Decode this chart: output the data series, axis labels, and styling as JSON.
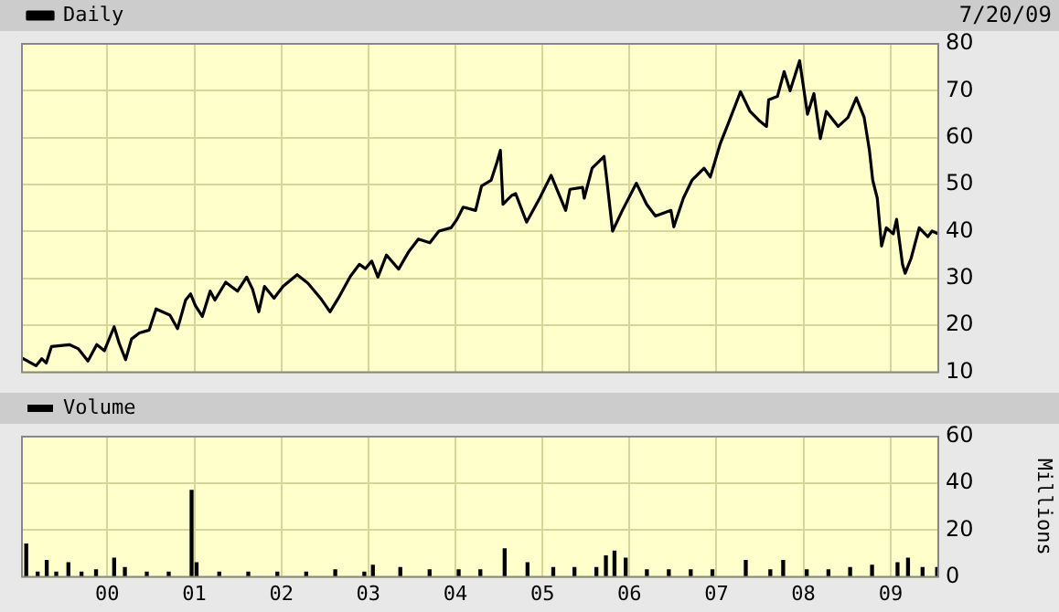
{
  "chart_data": [
    {
      "type": "line",
      "title": null,
      "annotations": [
        "7/20/09"
      ],
      "legend": "top left",
      "grid": true,
      "marker": "none",
      "line_style": "solid",
      "tick_labels": "y",
      "xlim": [
        "1999-01-08",
        "2009-07-20"
      ],
      "xticks": [
        {
          "value": "2000-01-01",
          "label": null
        },
        {
          "value": "2001-01-01",
          "label": null
        },
        {
          "value": "2002-01-01",
          "label": null
        },
        {
          "value": "2003-01-01",
          "label": null
        },
        {
          "value": "2004-01-01",
          "label": null
        },
        {
          "value": "2005-01-01",
          "label": null
        },
        {
          "value": "2006-01-01",
          "label": null
        },
        {
          "value": "2007-01-01",
          "label": null
        },
        {
          "value": "2008-01-01",
          "label": null
        },
        {
          "value": "2009-01-01",
          "label": null
        }
      ],
      "ylim": [
        10,
        80
      ],
      "yticks": [
        10,
        20,
        30,
        40,
        50,
        60,
        70,
        80
      ],
      "series": [
        {
          "name": "Daily",
          "color": "#000000",
          "x": [
            "1999-01-10",
            "1999-03-08",
            "1999-04-01",
            "1999-04-20",
            "1999-05-12",
            "1999-07-26",
            "1999-09-02",
            "1999-10-12",
            "1999-11-18",
            "1999-12-20",
            "2000-01-30",
            "2000-02-20",
            "2000-03-18",
            "2000-04-12",
            "2000-05-15",
            "2000-06-25",
            "2000-07-24",
            "2000-09-20",
            "2000-10-22",
            "2000-11-25",
            "2000-12-16",
            "2001-01-05",
            "2001-02-03",
            "2001-03-08",
            "2001-03-28",
            "2001-05-12",
            "2001-07-01",
            "2001-08-08",
            "2001-09-02",
            "2001-09-28",
            "2001-10-22",
            "2001-12-01",
            "2002-01-08",
            "2002-03-08",
            "2002-04-22",
            "2002-06-14",
            "2002-07-24",
            "2002-08-28",
            "2002-10-18",
            "2002-11-24",
            "2002-12-20",
            "2003-01-15",
            "2003-02-10",
            "2003-03-18",
            "2003-05-08",
            "2003-06-18",
            "2003-07-30",
            "2003-09-16",
            "2003-10-24",
            "2003-12-14",
            "2004-01-08",
            "2004-02-03",
            "2004-03-26",
            "2004-04-20",
            "2004-05-30",
            "2004-06-24",
            "2004-07-08",
            "2004-07-19",
            "2004-08-25",
            "2004-09-10",
            "2004-10-26",
            "2004-12-20",
            "2005-02-06",
            "2005-04-08",
            "2005-04-26",
            "2005-06-18",
            "2005-06-25",
            "2005-07-28",
            "2005-09-16",
            "2005-09-28",
            "2005-10-22",
            "2005-12-02",
            "2006-01-30",
            "2006-03-14",
            "2006-04-20",
            "2006-06-24",
            "2006-07-06",
            "2006-08-15",
            "2006-09-20",
            "2006-11-10",
            "2006-12-06",
            "2007-01-16",
            "2007-02-20",
            "2007-04-12",
            "2007-05-22",
            "2007-06-28",
            "2007-07-30",
            "2007-08-08",
            "2007-09-14",
            "2007-10-12",
            "2007-11-06",
            "2007-12-16",
            "2008-01-18",
            "2008-02-14",
            "2008-03-12",
            "2008-04-06",
            "2008-05-26",
            "2008-07-06",
            "2008-08-10",
            "2008-09-12",
            "2008-10-04",
            "2008-10-18",
            "2008-11-06",
            "2008-11-24",
            "2008-12-14",
            "2009-01-12",
            "2009-01-26",
            "2009-02-20",
            "2009-03-03",
            "2009-03-28",
            "2009-05-01",
            "2009-06-06",
            "2009-06-24",
            "2009-07-20"
          ],
          "values": [
            13.0,
            11.4,
            12.9,
            12.0,
            15.5,
            15.9,
            15.0,
            12.4,
            15.9,
            14.6,
            19.7,
            16.2,
            12.7,
            17.1,
            18.4,
            19.0,
            23.5,
            22.2,
            19.3,
            25.4,
            26.7,
            24.2,
            21.9,
            27.3,
            25.4,
            29.2,
            27.3,
            30.3,
            27.7,
            22.9,
            28.3,
            25.8,
            28.3,
            30.8,
            29.0,
            25.8,
            22.9,
            25.8,
            30.5,
            33.0,
            32.1,
            33.7,
            30.3,
            35.0,
            32.0,
            35.6,
            38.4,
            37.6,
            40.1,
            40.8,
            42.6,
            45.2,
            44.5,
            49.7,
            50.9,
            54.8,
            57.3,
            45.8,
            47.7,
            48.1,
            42.0,
            47.1,
            52.0,
            44.5,
            49.0,
            49.4,
            47.1,
            53.5,
            56.0,
            50.9,
            40.1,
            44.5,
            50.3,
            45.8,
            43.3,
            44.5,
            41.0,
            47.1,
            50.9,
            53.5,
            51.6,
            58.6,
            63.1,
            69.8,
            65.6,
            63.7,
            62.4,
            68.1,
            68.8,
            74.1,
            70.0,
            76.4,
            65.0,
            69.4,
            59.8,
            65.6,
            62.4,
            64.3,
            68.5,
            64.3,
            57.3,
            50.9,
            47.1,
            36.9,
            40.8,
            39.5,
            42.6,
            33.0,
            31.1,
            34.3,
            40.8,
            38.9,
            40.1,
            39.5
          ]
        }
      ]
    },
    {
      "type": "bar",
      "ylabel": "Millions",
      "legend": "top left",
      "grid": true,
      "xlim": [
        "1999-01-08",
        "2009-07-20"
      ],
      "xticks": [
        {
          "value": "2000-01-01",
          "label": "00"
        },
        {
          "value": "2001-01-01",
          "label": "01"
        },
        {
          "value": "2002-01-01",
          "label": "02"
        },
        {
          "value": "2003-01-01",
          "label": "03"
        },
        {
          "value": "2004-01-01",
          "label": "04"
        },
        {
          "value": "2005-01-01",
          "label": "05"
        },
        {
          "value": "2006-01-01",
          "label": "06"
        },
        {
          "value": "2007-01-01",
          "label": "07"
        },
        {
          "value": "2008-01-01",
          "label": "08"
        },
        {
          "value": "2009-01-01",
          "label": "09"
        }
      ],
      "ylim": [
        0,
        60
      ],
      "yticks": [
        0,
        20,
        40,
        60
      ],
      "series": [
        {
          "name": "Volume",
          "color": "#000000",
          "x": [
            "1999-01-26",
            "1999-03-15",
            "1999-04-22",
            "1999-06-01",
            "1999-07-22",
            "1999-09-15",
            "1999-11-15",
            "2000-01-30",
            "2000-03-15",
            "2000-06-15",
            "2000-09-15",
            "2000-12-20",
            "2001-01-10",
            "2001-04-15",
            "2001-08-15",
            "2001-12-15",
            "2002-04-15",
            "2002-08-15",
            "2002-12-15",
            "2003-01-20",
            "2003-05-15",
            "2003-09-15",
            "2004-01-15",
            "2004-04-15",
            "2004-07-26",
            "2004-10-30",
            "2005-02-15",
            "2005-05-15",
            "2005-08-15",
            "2005-09-24",
            "2005-10-30",
            "2005-12-16",
            "2006-03-15",
            "2006-06-15",
            "2006-09-15",
            "2006-12-15",
            "2007-05-04",
            "2007-08-15",
            "2007-10-08",
            "2008-01-15",
            "2008-04-15",
            "2008-07-15",
            "2008-10-15",
            "2009-01-30",
            "2009-03-15",
            "2009-05-15",
            "2009-07-15"
          ],
          "values": [
            14,
            2,
            7,
            2,
            6,
            2,
            3,
            8,
            4,
            2,
            2,
            37,
            6,
            2,
            2,
            2,
            2,
            3,
            2,
            5,
            4,
            3,
            3,
            3,
            12,
            6,
            4,
            4,
            4,
            9,
            11,
            8,
            3,
            3,
            3,
            3,
            7,
            3,
            7,
            3,
            3,
            4,
            5,
            6,
            8,
            4,
            4
          ]
        }
      ]
    }
  ]
}
